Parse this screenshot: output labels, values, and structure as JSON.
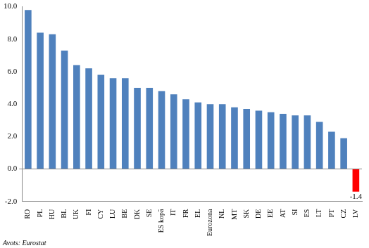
{
  "chart_data": {
    "type": "bar",
    "categories": [
      "RO",
      "PL",
      "HU",
      "BL",
      "UK",
      "FI",
      "CY",
      "LU",
      "BE",
      "DK",
      "SE",
      "ES kopā",
      "IT",
      "FR",
      "EL",
      "Eurozona",
      "NL",
      "MT",
      "SK",
      "DE",
      "EE",
      "AT",
      "SI",
      "ES",
      "LT",
      "PT",
      "CZ",
      "LV"
    ],
    "values": [
      9.8,
      8.4,
      8.3,
      7.3,
      6.4,
      6.2,
      5.8,
      5.6,
      5.6,
      5.0,
      5.0,
      4.8,
      4.6,
      4.3,
      4.1,
      4.0,
      4.0,
      3.8,
      3.7,
      3.6,
      3.5,
      3.4,
      3.3,
      3.3,
      2.9,
      2.3,
      1.9,
      -1.4
    ],
    "colors": [
      "#4f81bd",
      "#4f81bd",
      "#4f81bd",
      "#4f81bd",
      "#4f81bd",
      "#4f81bd",
      "#4f81bd",
      "#4f81bd",
      "#4f81bd",
      "#4f81bd",
      "#4f81bd",
      "#4f81bd",
      "#4f81bd",
      "#4f81bd",
      "#4f81bd",
      "#4f81bd",
      "#4f81bd",
      "#4f81bd",
      "#4f81bd",
      "#4f81bd",
      "#4f81bd",
      "#4f81bd",
      "#4f81bd",
      "#4f81bd",
      "#4f81bd",
      "#4f81bd",
      "#4f81bd",
      "#ff0000"
    ],
    "data_labels": true,
    "value_labels": [
      null,
      null,
      null,
      null,
      null,
      null,
      null,
      null,
      null,
      null,
      null,
      null,
      null,
      null,
      null,
      null,
      null,
      null,
      null,
      null,
      null,
      null,
      null,
      null,
      null,
      null,
      null,
      "-1.4"
    ],
    "ylim": [
      -2,
      10
    ],
    "yticks": [
      {
        "value": -2,
        "label": "-2.0"
      },
      {
        "value": 0,
        "label": "0.0"
      },
      {
        "value": 2,
        "label": "2.0"
      },
      {
        "value": 4,
        "label": "4.0"
      },
      {
        "value": 6,
        "label": "6.0"
      },
      {
        "value": 8,
        "label": "8.0"
      },
      {
        "value": 10,
        "label": "10.0"
      }
    ],
    "grid": false,
    "annotations": [
      "Avots: Eurostat"
    ]
  }
}
